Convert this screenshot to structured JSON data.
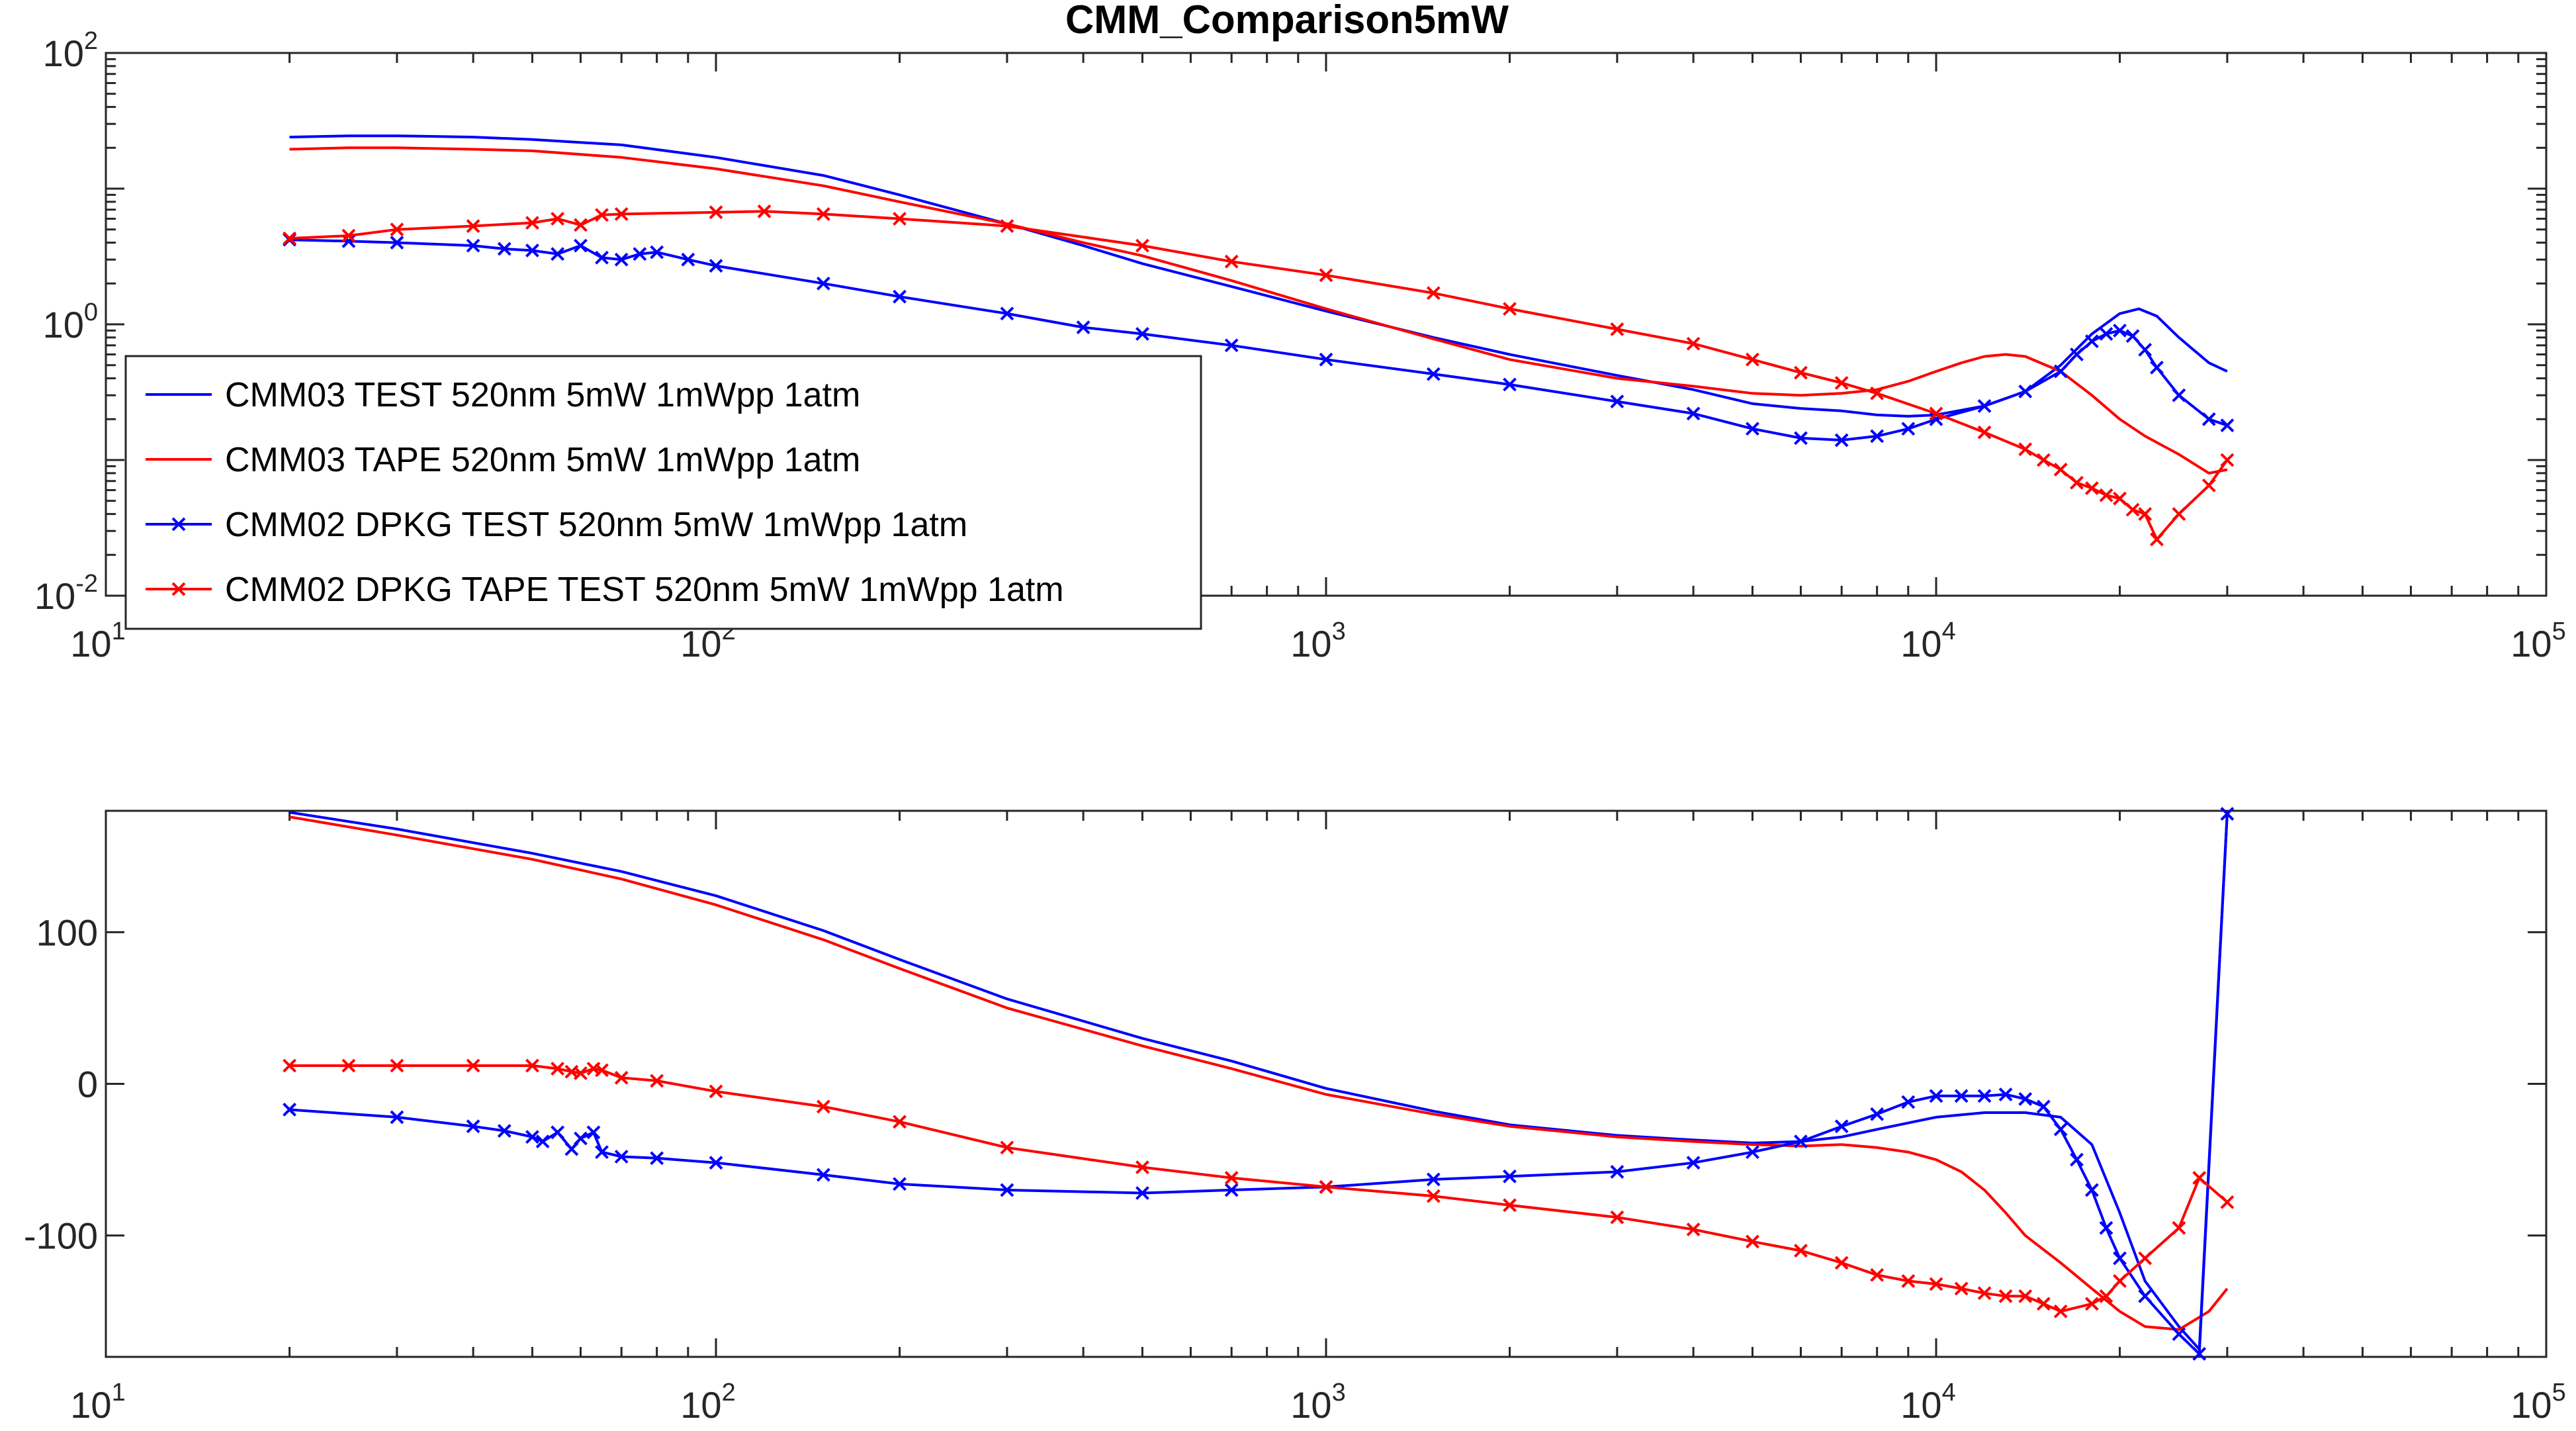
{
  "chart_data": [
    {
      "type": "line",
      "title": "CMM_Comparison5mW",
      "xscale": "log",
      "yscale": "log",
      "xlim": [
        10,
        100000
      ],
      "ylim": [
        0.01,
        100
      ],
      "xticks": [
        10,
        100,
        1000,
        10000,
        100000
      ],
      "xtick_labels": [
        {
          "base": "10",
          "exp": "1"
        },
        {
          "base": "10",
          "exp": "2"
        },
        {
          "base": "10",
          "exp": "3"
        },
        {
          "base": "10",
          "exp": "4"
        },
        {
          "base": "10",
          "exp": "5"
        }
      ],
      "yticks": [
        0.01,
        1,
        100
      ],
      "ytick_labels": [
        {
          "base": "10",
          "exp": "-2"
        },
        {
          "base": "10",
          "exp": "0"
        },
        {
          "base": "10",
          "exp": "2"
        }
      ],
      "grid": false,
      "legend_position": "left",
      "series": [
        {
          "name": "CMM03 TEST 520nm 5mW 1mWpp 1atm",
          "color": "#0000ff",
          "marker": "none",
          "x": [
            20,
            25,
            30,
            40,
            50,
            70,
            100,
            150,
            200,
            300,
            400,
            500,
            700,
            1000,
            1500,
            2000,
            3000,
            4000,
            5000,
            6000,
            7000,
            8000,
            9000,
            10000,
            12000,
            14000,
            16000,
            18000,
            20000,
            21500,
            23000,
            25000,
            28000,
            30000
          ],
          "y": [
            24,
            24.5,
            24.5,
            24,
            23,
            21,
            17,
            12.5,
            9,
            5.5,
            3.8,
            2.8,
            1.9,
            1.25,
            0.8,
            0.6,
            0.42,
            0.33,
            0.26,
            0.24,
            0.23,
            0.215,
            0.21,
            0.215,
            0.25,
            0.32,
            0.5,
            0.85,
            1.2,
            1.3,
            1.15,
            0.8,
            0.52,
            0.45
          ]
        },
        {
          "name": "CMM03 TAPE 520nm 5mW 1mWpp 1atm",
          "color": "#ff0000",
          "marker": "none",
          "x": [
            20,
            25,
            30,
            40,
            50,
            70,
            100,
            150,
            200,
            300,
            400,
            500,
            700,
            1000,
            1500,
            2000,
            3000,
            4000,
            5000,
            6000,
            7000,
            8000,
            9000,
            10000,
            11000,
            12000,
            13000,
            14000,
            16000,
            18000,
            20000,
            22000,
            25000,
            28000,
            30000
          ],
          "y": [
            19.5,
            20,
            20,
            19.5,
            19,
            17,
            14,
            10.5,
            8,
            5.5,
            4,
            3.2,
            2.1,
            1.3,
            0.78,
            0.55,
            0.4,
            0.35,
            0.31,
            0.3,
            0.31,
            0.33,
            0.38,
            0.45,
            0.52,
            0.58,
            0.6,
            0.58,
            0.45,
            0.3,
            0.2,
            0.15,
            0.11,
            0.08,
            0.085
          ]
        },
        {
          "name": "CMM02 DPKG TEST 520nm 5mW 1mWpp 1atm",
          "color": "#0000ff",
          "marker": "x",
          "x": [
            20,
            25,
            30,
            40,
            45,
            50,
            55,
            60,
            65,
            70,
            75,
            80,
            90,
            100,
            150,
            200,
            300,
            400,
            500,
            700,
            1000,
            1500,
            2000,
            3000,
            4000,
            5000,
            6000,
            7000,
            8000,
            9000,
            10000,
            12000,
            14000,
            16000,
            17000,
            18000,
            19000,
            20000,
            21000,
            22000,
            23000,
            25000,
            28000,
            30000
          ],
          "y": [
            4.2,
            4.1,
            4.0,
            3.8,
            3.6,
            3.5,
            3.3,
            3.8,
            3.1,
            3.0,
            3.3,
            3.4,
            3.0,
            2.7,
            2.0,
            1.6,
            1.2,
            0.95,
            0.85,
            0.7,
            0.55,
            0.43,
            0.36,
            0.27,
            0.22,
            0.17,
            0.145,
            0.14,
            0.15,
            0.17,
            0.2,
            0.25,
            0.32,
            0.45,
            0.6,
            0.75,
            0.85,
            0.9,
            0.82,
            0.65,
            0.48,
            0.3,
            0.2,
            0.18
          ]
        },
        {
          "name": "CMM02 DPKG TAPE TEST 520nm 5mW 1mWpp 1atm",
          "color": "#ff0000",
          "marker": "x",
          "x": [
            20,
            25,
            30,
            40,
            50,
            55,
            60,
            65,
            70,
            100,
            120,
            150,
            200,
            300,
            500,
            700,
            1000,
            1500,
            2000,
            3000,
            4000,
            5000,
            6000,
            7000,
            8000,
            10000,
            12000,
            14000,
            15000,
            16000,
            17000,
            18000,
            19000,
            20000,
            21000,
            22000,
            23000,
            25000,
            28000,
            30000
          ],
          "y": [
            4.3,
            4.5,
            5.0,
            5.3,
            5.6,
            6.0,
            5.4,
            6.4,
            6.5,
            6.7,
            6.8,
            6.5,
            6.0,
            5.3,
            3.8,
            2.9,
            2.3,
            1.7,
            1.3,
            0.92,
            0.72,
            0.55,
            0.44,
            0.37,
            0.31,
            0.22,
            0.16,
            0.12,
            0.1,
            0.085,
            0.068,
            0.062,
            0.055,
            0.052,
            0.043,
            0.04,
            0.026,
            0.04,
            0.065,
            0.1
          ]
        }
      ]
    },
    {
      "type": "line",
      "title": "",
      "xscale": "log",
      "yscale": "linear",
      "xlim": [
        10,
        100000
      ],
      "ylim": [
        -180,
        180
      ],
      "xticks": [
        10,
        100,
        1000,
        10000,
        100000
      ],
      "xtick_labels": [
        {
          "base": "10",
          "exp": "1"
        },
        {
          "base": "10",
          "exp": "2"
        },
        {
          "base": "10",
          "exp": "3"
        },
        {
          "base": "10",
          "exp": "4"
        },
        {
          "base": "10",
          "exp": "5"
        }
      ],
      "yticks": [
        100,
        0,
        -100
      ],
      "ytick_labels": [
        {
          "base": "100",
          "exp": ""
        },
        {
          "base": "0",
          "exp": ""
        },
        {
          "base": "-100",
          "exp": ""
        }
      ],
      "grid": false,
      "series": [
        {
          "color": "#0000ff",
          "marker": "none",
          "x": [
            20,
            30,
            50,
            70,
            100,
            150,
            200,
            300,
            500,
            700,
            1000,
            1500,
            2000,
            3000,
            4000,
            5000,
            6000,
            7000,
            8000,
            10000,
            12000,
            14000,
            16000,
            18000,
            20000,
            22000,
            25000,
            27000,
            30000
          ],
          "y": [
            179,
            168,
            152,
            140,
            124,
            101,
            82,
            56,
            30,
            15,
            -3,
            -18,
            -27,
            -34,
            -37,
            -39,
            -38,
            -35,
            -30,
            -22,
            -19,
            -19,
            -22,
            -40,
            -85,
            -130,
            -160,
            -175,
            179
          ]
        },
        {
          "color": "#ff0000",
          "marker": "none",
          "x": [
            20,
            30,
            50,
            70,
            100,
            150,
            200,
            300,
            500,
            700,
            1000,
            1500,
            2000,
            3000,
            4000,
            5000,
            6000,
            7000,
            8000,
            9000,
            10000,
            11000,
            12000,
            13000,
            14000,
            16000,
            18000,
            20000,
            22000,
            25000,
            28000,
            30000
          ],
          "y": [
            176,
            164,
            148,
            135,
            118,
            95,
            76,
            50,
            25,
            10,
            -7,
            -20,
            -28,
            -35,
            -38,
            -40,
            -41,
            -40,
            -42,
            -45,
            -50,
            -58,
            -70,
            -85,
            -100,
            -118,
            -135,
            -150,
            -160,
            -162,
            -150,
            -135
          ]
        },
        {
          "color": "#0000ff",
          "marker": "x",
          "x": [
            20,
            30,
            40,
            45,
            50,
            52,
            55,
            58,
            60,
            63,
            65,
            70,
            80,
            100,
            150,
            200,
            300,
            500,
            700,
            1000,
            1500,
            2000,
            3000,
            4000,
            5000,
            6000,
            7000,
            8000,
            9000,
            10000,
            11000,
            12000,
            13000,
            14000,
            15000,
            16000,
            17000,
            18000,
            19000,
            20000,
            22000,
            25000,
            27000,
            30000
          ],
          "y": [
            -17,
            -22,
            -28,
            -31,
            -35,
            -38,
            -32,
            -43,
            -36,
            -32,
            -45,
            -48,
            -49,
            -52,
            -60,
            -66,
            -70,
            -72,
            -70,
            -68,
            -63,
            -61,
            -58,
            -52,
            -45,
            -38,
            -28,
            -20,
            -12,
            -8,
            -8,
            -8,
            -7,
            -10,
            -15,
            -30,
            -50,
            -70,
            -95,
            -115,
            -140,
            -165,
            -178,
            178
          ]
        },
        {
          "color": "#ff0000",
          "marker": "x",
          "x": [
            20,
            25,
            30,
            40,
            50,
            55,
            58,
            60,
            63,
            65,
            70,
            80,
            100,
            150,
            200,
            300,
            500,
            700,
            1000,
            1500,
            2000,
            3000,
            4000,
            5000,
            6000,
            7000,
            8000,
            9000,
            10000,
            11000,
            12000,
            13000,
            14000,
            15000,
            16000,
            18000,
            19000,
            20000,
            22000,
            25000,
            27000,
            30000
          ],
          "y": [
            12,
            12,
            12,
            12,
            12,
            10,
            8,
            7,
            10,
            9,
            4,
            2,
            -5,
            -15,
            -25,
            -42,
            -55,
            -62,
            -68,
            -74,
            -80,
            -88,
            -96,
            -104,
            -110,
            -118,
            -126,
            -130,
            -132,
            -135,
            -138,
            -140,
            -140,
            -145,
            -150,
            -145,
            -140,
            -130,
            -115,
            -95,
            -62,
            -78
          ]
        }
      ]
    }
  ]
}
